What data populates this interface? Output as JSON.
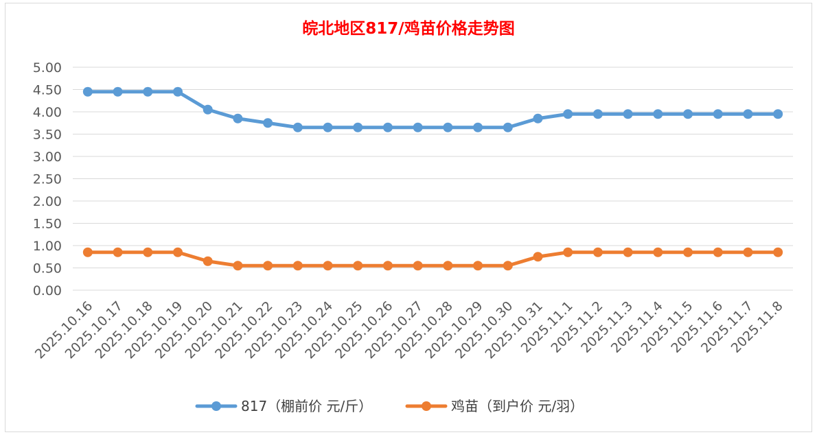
{
  "chart_data": {
    "type": "line",
    "title": "皖北地区817/鸡苗价格走势图",
    "title_color": "#ff0000",
    "xlabel": "",
    "ylabel": "",
    "ylim": [
      0,
      5
    ],
    "y_ticks": [
      "0.00",
      "0.50",
      "1.00",
      "1.50",
      "2.00",
      "2.50",
      "3.00",
      "3.50",
      "4.00",
      "4.50",
      "5.00"
    ],
    "grid": true,
    "legend_position": "bottom",
    "categories": [
      "2025.10.16",
      "2025.10.17",
      "2025.10.18",
      "2025.10.19",
      "2025.10.20",
      "2025.10.21",
      "2025.10.22",
      "2025.10.23",
      "2025.10.24",
      "2025.10.25",
      "2025.10.26",
      "2025.10.27",
      "2025.10.28",
      "2025.10.29",
      "2025.10.30",
      "2025.10.31",
      "2025.11.1",
      "2025.11.2",
      "2025.11.3",
      "2025.11.4",
      "2025.11.5",
      "2025.11.6",
      "2025.11.7",
      "2025.11.8"
    ],
    "series": [
      {
        "name": "817（棚前价 元/斤）",
        "color": "#5b9bd5",
        "values": [
          4.45,
          4.45,
          4.45,
          4.45,
          4.05,
          3.85,
          3.75,
          3.65,
          3.65,
          3.65,
          3.65,
          3.65,
          3.65,
          3.65,
          3.65,
          3.85,
          3.95,
          3.95,
          3.95,
          3.95,
          3.95,
          3.95,
          3.95,
          3.95
        ]
      },
      {
        "name": "鸡苗（到户价 元/羽）",
        "color": "#ed7d31",
        "values": [
          0.85,
          0.85,
          0.85,
          0.85,
          0.65,
          0.55,
          0.55,
          0.55,
          0.55,
          0.55,
          0.55,
          0.55,
          0.55,
          0.55,
          0.55,
          0.75,
          0.85,
          0.85,
          0.85,
          0.85,
          0.85,
          0.85,
          0.85,
          0.85
        ]
      }
    ]
  }
}
